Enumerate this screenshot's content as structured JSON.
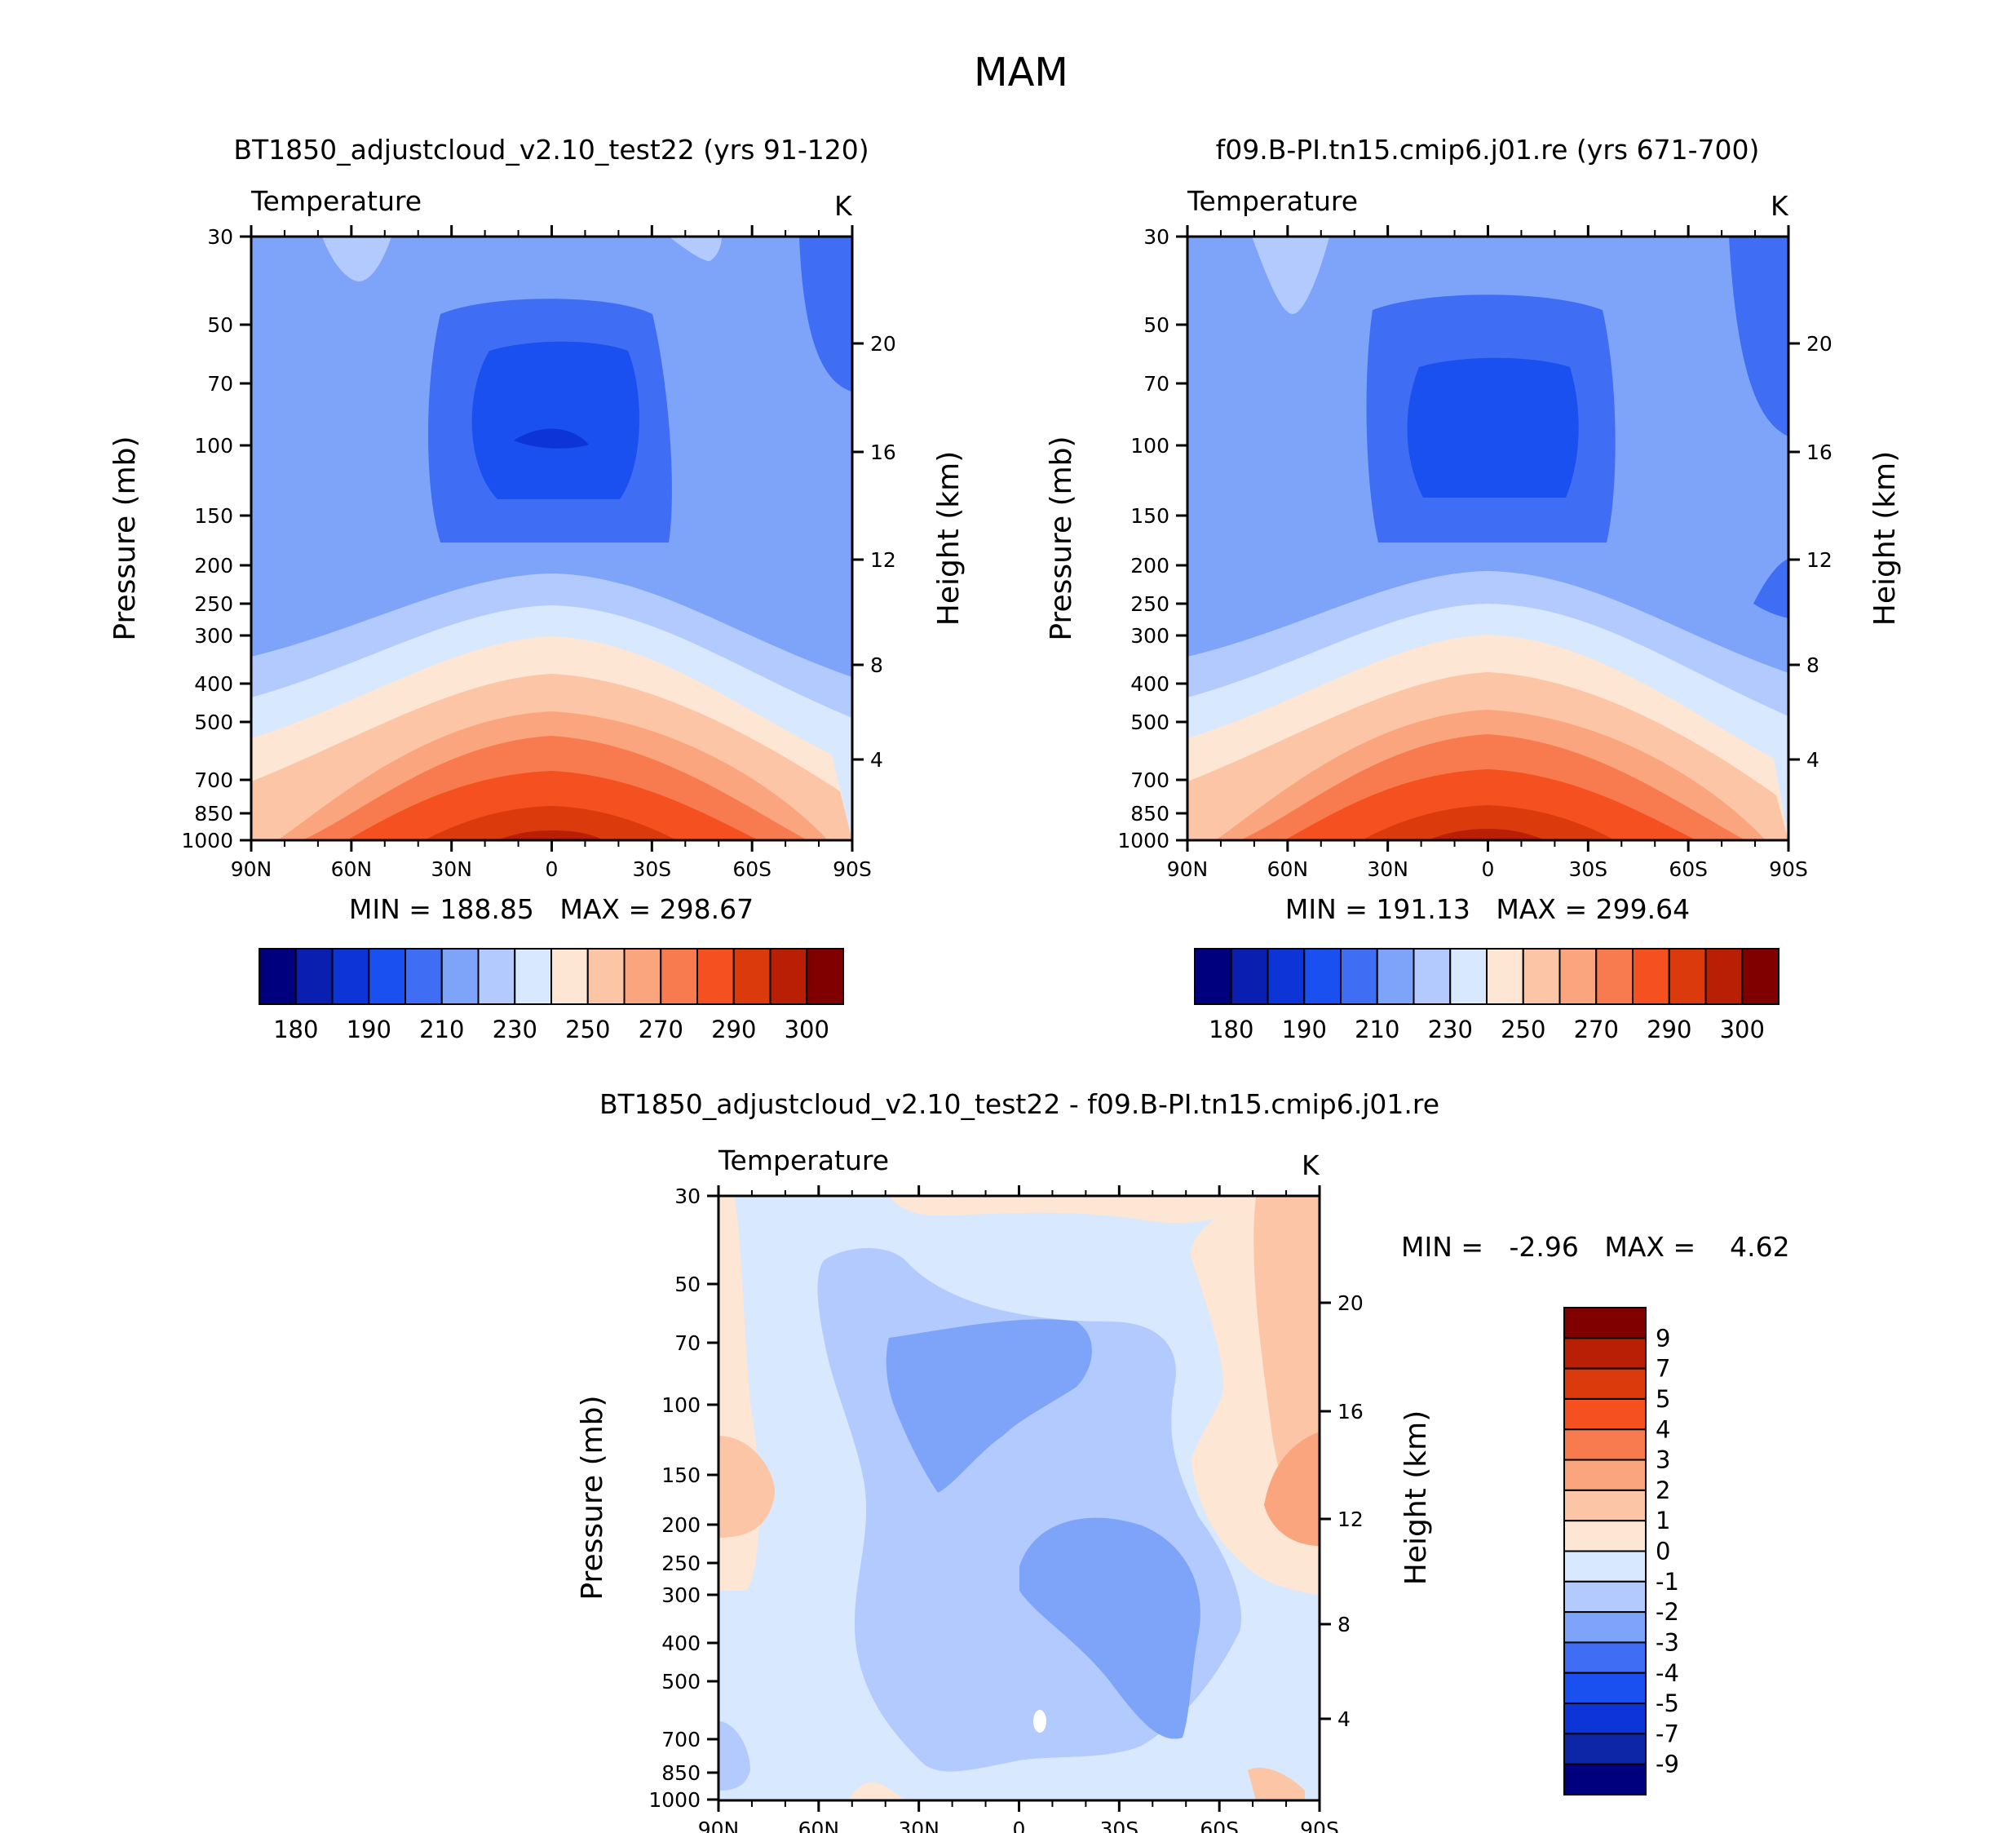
{
  "figure": {
    "title": "MAM",
    "color_scheme": {
      "abs_levels": [
        "#00007f",
        "#0a1fb0",
        "#0d34d6",
        "#1a4ff0",
        "#3f6ef5",
        "#7ea4fa",
        "#b3caff",
        "#d8e8ff",
        "#fde6d4",
        "#fcc5a6",
        "#fba57e",
        "#f87b4f",
        "#f5501f",
        "#da3a0c",
        "#b81f05",
        "#800000"
      ],
      "diff_levels": [
        "#00007f",
        "#0d26a8",
        "#0d34d6",
        "#1a4ff0",
        "#3f6ef5",
        "#7ea4fa",
        "#b3caff",
        "#d8e8ff",
        "#fde6d4",
        "#fcc5a6",
        "#fba57e",
        "#f87b4f",
        "#f5501f",
        "#da3a0c",
        "#b81f05",
        "#800000"
      ]
    },
    "axes_common": {
      "pressure_label": "Pressure (mb)",
      "height_label": "Height (km)",
      "variable": "Temperature",
      "units": "K",
      "pressure_ticks": [
        "30",
        "50",
        "70",
        "100",
        "150",
        "200",
        "250",
        "300",
        "400",
        "500",
        "700",
        "850",
        "1000"
      ],
      "height_ticks": [
        "20",
        "16",
        "12",
        "8",
        "4"
      ],
      "lat_ticks": [
        "90N",
        "60N",
        "30N",
        "0",
        "30S",
        "60S",
        "90S"
      ]
    }
  },
  "chart_data": [
    {
      "type": "heatmap",
      "title": "BT1850_adjustcloud_v2.10_test22 (yrs 91-120)",
      "variable": "Temperature",
      "units": "K",
      "xlabel": "",
      "ylabel": "Pressure (mb)",
      "y2label": "Height (km)",
      "x_range": [
        "90N",
        "90S"
      ],
      "y_range_mb": [
        1000,
        30
      ],
      "min": 188.85,
      "max": 298.67,
      "stats_text": "MIN = 188.85   MAX = 298.67",
      "colorbar_labels": [
        "180",
        "190",
        "210",
        "230",
        "250",
        "270",
        "290",
        "300"
      ]
    },
    {
      "type": "heatmap",
      "title": "f09.B-PI.tn15.cmip6.j01.re (yrs 671-700)",
      "variable": "Temperature",
      "units": "K",
      "xlabel": "",
      "ylabel": "Pressure (mb)",
      "y2label": "Height (km)",
      "x_range": [
        "90N",
        "90S"
      ],
      "y_range_mb": [
        1000,
        30
      ],
      "min": 191.13,
      "max": 299.64,
      "stats_text": "MIN = 191.13   MAX = 299.64",
      "colorbar_labels": [
        "180",
        "190",
        "210",
        "230",
        "250",
        "270",
        "290",
        "300"
      ]
    },
    {
      "type": "heatmap",
      "title": "BT1850_adjustcloud_v2.10_test22 - f09.B-PI.tn15.cmip6.j01.re",
      "variable": "Temperature",
      "units": "K",
      "xlabel": "",
      "ylabel": "Pressure (mb)",
      "y2label": "Height (km)",
      "x_range": [
        "90N",
        "90S"
      ],
      "y_range_mb": [
        1000,
        30
      ],
      "min": -2.96,
      "max": 4.62,
      "stats_text": "MIN =   -2.96   MAX =    4.62",
      "colorbar_labels": [
        "9",
        "7",
        "5",
        "4",
        "3",
        "2",
        "1",
        "0",
        "-1",
        "-2",
        "-3",
        "-4",
        "-5",
        "-7",
        "-9"
      ]
    }
  ]
}
